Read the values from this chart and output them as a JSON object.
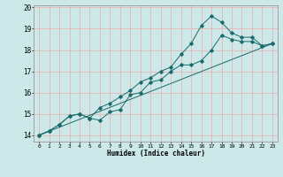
{
  "title": "",
  "xlabel": "Humidex (Indice chaleur)",
  "ylabel": "",
  "xlim": [
    -0.5,
    23.5
  ],
  "ylim": [
    13.7,
    20.1
  ],
  "yticks": [
    14,
    15,
    16,
    17,
    18,
    19,
    20
  ],
  "xticks": [
    0,
    1,
    2,
    3,
    4,
    5,
    6,
    7,
    8,
    9,
    10,
    11,
    12,
    13,
    14,
    15,
    16,
    17,
    18,
    19,
    20,
    21,
    22,
    23
  ],
  "background_color": "#cce8e8",
  "grid_color": "#e8b4b4",
  "line_color": "#1a6b6b",
  "line1_x": [
    0,
    1,
    2,
    3,
    4,
    5,
    6,
    7,
    8,
    9,
    10,
    11,
    12,
    13,
    14,
    15,
    16,
    17,
    18,
    19,
    20,
    21,
    22,
    23
  ],
  "line1_y": [
    14.0,
    14.2,
    14.5,
    14.9,
    15.0,
    14.8,
    14.7,
    15.1,
    15.2,
    15.9,
    16.0,
    16.5,
    16.6,
    17.0,
    17.3,
    17.3,
    17.5,
    18.0,
    18.7,
    18.5,
    18.4,
    18.4,
    18.2,
    18.3
  ],
  "line2_x": [
    0,
    1,
    2,
    3,
    4,
    5,
    6,
    7,
    8,
    9,
    10,
    11,
    12,
    13,
    14,
    15,
    16,
    17,
    18,
    19,
    20,
    21,
    22,
    23
  ],
  "line2_y": [
    14.0,
    14.2,
    14.5,
    14.9,
    15.0,
    14.8,
    15.3,
    15.5,
    15.8,
    16.1,
    16.5,
    16.7,
    17.0,
    17.2,
    17.8,
    18.3,
    19.15,
    19.6,
    19.3,
    18.8,
    18.6,
    18.6,
    18.2,
    18.3
  ],
  "line3_x": [
    0,
    23
  ],
  "line3_y": [
    14.0,
    18.3
  ]
}
